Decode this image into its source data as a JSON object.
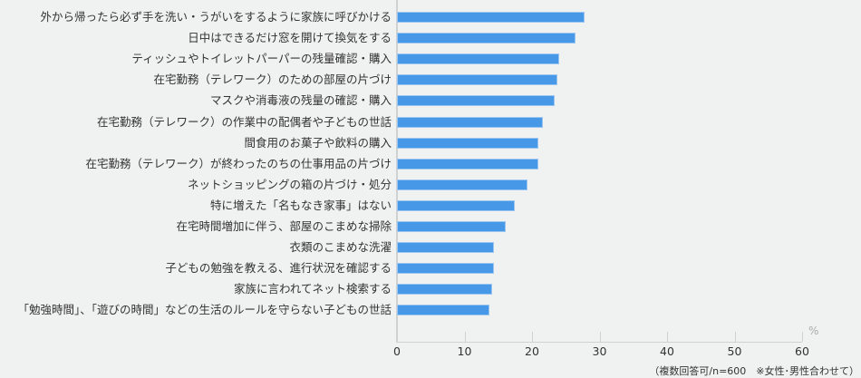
{
  "chart_data": {
    "type": "bar",
    "orientation": "horizontal",
    "title": "",
    "xlabel": "",
    "ylabel": "",
    "unit": "%",
    "xlim": [
      0,
      60
    ],
    "xticks": [
      0,
      10,
      20,
      30,
      40,
      50,
      60
    ],
    "grid": false,
    "legend": null,
    "bar_color": "#4799e8",
    "categories": [
      "外から帰ったら必ず手を洗い・うがいをするように家族に呼びかける",
      "日中はできるだけ窓を開けて換気をする",
      "ティッシュやトイレットパーパーの残量確認・購入",
      "在宅勤務（テレワーク）のための部屋の片づけ",
      "マスクや消毒液の残量の確認・購入",
      "在宅勤務（テレワーク）の作業中の配偶者や子どもの世話",
      "間食用のお菓子や飲料の購入",
      "在宅勤務（テレワーク）が終わったのちの仕事用品の片づけ",
      "ネットショッピングの箱の片づけ・処分",
      "特に増えた「名もなき家事」はない",
      "在宅時間増加に伴う、部屋のこまめな掃除",
      "衣類のこまめな洗濯",
      "子どもの勉強を教える、進行状況を確認する",
      "家族に言われてネット検索する",
      "「勉強時間」、「遊びの時間」などの生活のルールを守らない子どもの世話"
    ],
    "values": [
      27.8,
      26.4,
      24.0,
      23.7,
      23.4,
      21.6,
      20.9,
      20.9,
      19.3,
      17.5,
      16.1,
      14.4,
      14.4,
      14.1,
      13.7
    ],
    "annotations": [
      "（複数回答可/n=600　※女性･男性合わせて）"
    ]
  },
  "axis": {
    "unit_label": "%",
    "ticks": [
      "0",
      "10",
      "20",
      "30",
      "40",
      "50",
      "60"
    ]
  },
  "note": "（複数回答可/n=600　※女性･男性合わせて）"
}
